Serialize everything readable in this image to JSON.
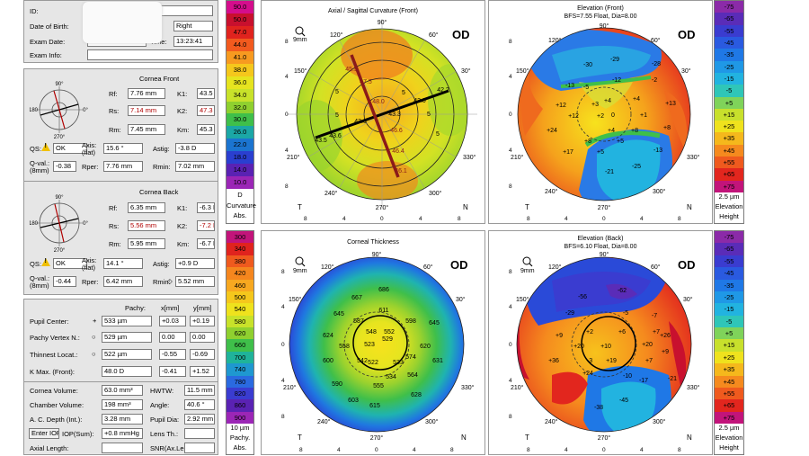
{
  "patient": {
    "id_label": "ID:",
    "dob_label": "Date of Birth:",
    "eye_value": "Right",
    "exam_date_label": "Exam Date:",
    "time_label": "Time:",
    "time_value": "13:23:41",
    "exam_info_label": "Exam Info:"
  },
  "cornea_front": {
    "title": "Cornea Front",
    "rf_label": "Rf:",
    "rf": "7.76 mm",
    "rs_label": "Rs:",
    "rs": "7.14 mm",
    "rm_label": "Rm:",
    "rm": "7.45 mm",
    "k1_label": "K1:",
    "k1": "43.5 D",
    "k2_label": "K2:",
    "k2": "47.3 D",
    "km_label": "Km:",
    "km": "45.3 D",
    "qs_label": "QS:",
    "qs": "OK",
    "axis_label": "Axis:",
    "axis_sub": "(flat)",
    "axis": "15.6 °",
    "astig_label": "Astig:",
    "astig": "-3.8 D",
    "qval_label": "Q-val.:",
    "qval_sub": "(8mm)",
    "qval": "-0.38",
    "rper_label": "Rper:",
    "rper": "7.76 mm",
    "rmin_label": "Rmin:",
    "rmin": "7.02 mm"
  },
  "cornea_back": {
    "title": "Cornea Back",
    "rf_label": "Rf:",
    "rf": "6.35 mm",
    "rs_label": "Rs:",
    "rs": "5.56 mm",
    "rm_label": "Rm:",
    "rm": "5.95 mm",
    "k1_label": "K1:",
    "k1": "-6.3 D",
    "k2_label": "K2:",
    "k2": "-7.2 D",
    "km_label": "Km:",
    "km": "-6.7 D",
    "qs_label": "QS:",
    "qs": "OK",
    "axis_label": "Axis:",
    "axis_sub": "(flat)",
    "axis": "14.1 °",
    "astig_label": "Astig:",
    "astig": "+0.9 D",
    "qval_label": "Q-val.:",
    "qval_sub": "(8mm)",
    "qval": "-0.44",
    "rper_label": "Rper:",
    "rper": "6.42 mm",
    "rmin_label": "Rmin:",
    "rmin": "5.52 mm"
  },
  "pachy": {
    "col_pachy": "Pachy:",
    "col_x": "x[mm]",
    "col_y": "y[mm]",
    "rows": [
      {
        "label": "Pupil Center:",
        "sym": "+",
        "val": "533 µm",
        "x": "+0.03",
        "y": "+0.19"
      },
      {
        "label": "Pachy Vertex N.:",
        "sym": "○",
        "val": "529 µm",
        "x": "0.00",
        "y": "0.00"
      },
      {
        "label": "Thinnest Locat.:",
        "sym": "○",
        "val": "522 µm",
        "x": "-0.55",
        "y": "-0.69"
      },
      {
        "label": "K Max. (Front):",
        "sym": "",
        "val": "48.0 D",
        "x": "-0.41",
        "y": "+1.52"
      }
    ]
  },
  "chamber": {
    "cornea_volume_label": "Cornea Volume:",
    "cornea_volume": "63.0 mm³",
    "hwtw_label": "HWTW:",
    "hwtw": "11.5 mm",
    "chamber_volume_label": "Chamber Volume:",
    "chamber_volume": "198 mm³",
    "angle_label": "Angle:",
    "angle": "40.6 °",
    "acd_label": "A. C. Depth (Int.):",
    "acd": "3.28 mm",
    "pupil_dia_label": "Pupil Dia:",
    "pupil_dia": "2.92 mm",
    "iop_button": "Enter IOP",
    "iop_label": "IOP(Sum):",
    "iop": "+0.8 mmHg",
    "lens_label": "Lens Th.:",
    "axial_label": "Axial Length:",
    "snr_label": "SNR(Ax.Len"
  },
  "maps": {
    "axial": {
      "title": "Axial / Sagittal Curvature (Front)",
      "subtitle": "",
      "eye": "OD",
      "zoom": "9mm",
      "left": "T",
      "right": "N"
    },
    "elev_front": {
      "title": "Elevation (Front)",
      "subtitle": "BFS=7.55 Float, Dia=8.00",
      "eye": "OD",
      "left": "T",
      "right": "N"
    },
    "thickness": {
      "title": "Corneal Thickness",
      "subtitle": "",
      "eye": "OD",
      "zoom": "9mm",
      "left": "T",
      "right": "N"
    },
    "elev_back": {
      "title": "Elevation (Back)",
      "subtitle": "BFS=6.10 Float, Dia=8.00",
      "eye": "OD",
      "zoom": "9mm",
      "left": "T",
      "right": "N"
    },
    "angles": {
      "a90": "90°",
      "a60": "60°",
      "a30": "30°",
      "a0": "0°",
      "a330": "330°",
      "a300": "300°",
      "a270": "270°",
      "a240": "240°",
      "a210": "210°",
      "a180": "180°",
      "a150": "150°",
      "a120": "120°"
    },
    "ticks_v": [
      "8",
      "4",
      "0",
      "4",
      "8"
    ],
    "ticks_h": [
      "8",
      "4",
      "0",
      "4",
      "8"
    ]
  },
  "scales": {
    "curvature": {
      "values": [
        "90.0",
        "50.0",
        "47.0",
        "44.0",
        "41.0",
        "38.0",
        "36.0",
        "34.0",
        "32.0",
        "30.0",
        "26.0",
        "22.0",
        "18.0",
        "14.0",
        "10.0",
        "D"
      ],
      "colors": [
        "#d40d8c",
        "#c8102e",
        "#e0231e",
        "#f25a1e",
        "#f79a20",
        "#f5c71c",
        "#e6e41f",
        "#c8e22a",
        "#8fd02f",
        "#3fbf4a",
        "#1ba7a6",
        "#1b74d0",
        "#2a3fd0",
        "#5a22b3",
        "#9b26b6",
        "#ffffff"
      ],
      "foot1": "Curvature",
      "foot2": "Abs."
    },
    "elev_front": {
      "values": [
        "-75",
        "-65",
        "-55",
        "-45",
        "-35",
        "-25",
        "-15",
        "-5",
        "+5",
        "+15",
        "+25",
        "+35",
        "+45",
        "+55",
        "+65",
        "+75"
      ],
      "colors": [
        "#8b2aa8",
        "#5a2cb8",
        "#3a3cd0",
        "#2a5ae0",
        "#1f78e6",
        "#1f98e6",
        "#22b3e0",
        "#2fc6b8",
        "#7fd35a",
        "#c8e02c",
        "#efe21d",
        "#f5b81c",
        "#f58a1e",
        "#ef5a1e",
        "#e2261e",
        "#c2147a"
      ],
      "foot0": "2.5 µm",
      "foot1": "Elevation",
      "foot2": "Height"
    },
    "thickness": {
      "values": [
        "300",
        "340",
        "380",
        "420",
        "460",
        "500",
        "540",
        "580",
        "620",
        "660",
        "700",
        "740",
        "780",
        "820",
        "860",
        "900"
      ],
      "colors": [
        "#c2147a",
        "#e0231e",
        "#ef5a1e",
        "#f5861e",
        "#f7a820",
        "#f5c71c",
        "#efe21d",
        "#c8e22a",
        "#8fd02f",
        "#3fbf4a",
        "#1fb39a",
        "#1f98d0",
        "#2a6ae0",
        "#3a3cd0",
        "#5a22b3",
        "#9b26b6"
      ],
      "foot0": "10 µm",
      "foot1": "Pachy.",
      "foot2": "Abs."
    },
    "elev_back": {
      "values": [
        "-75",
        "-65",
        "-55",
        "-45",
        "-35",
        "-25",
        "-15",
        "-5",
        "+5",
        "+15",
        "+25",
        "+35",
        "+45",
        "+55",
        "+65",
        "+75"
      ],
      "colors": [
        "#8b2aa8",
        "#5a2cb8",
        "#3a3cd0",
        "#2a5ae0",
        "#1f78e6",
        "#1f98e6",
        "#22b3e0",
        "#2fc6b8",
        "#7fd35a",
        "#c8e02c",
        "#efe21d",
        "#f5b81c",
        "#f58a1e",
        "#ef5a1e",
        "#e2261e",
        "#c2147a"
      ],
      "foot0": "2.5 µm",
      "foot1": "Elevation",
      "foot2": "Height"
    }
  },
  "map_values": {
    "axial": [
      "45.5",
      "47.5",
      "48.0",
      "43.0",
      "42.2",
      "43.6",
      "43.3",
      "43.6",
      "46.6",
      "46.4",
      "46.1",
      "43.5",
      "5",
      "5",
      "5",
      "5",
      "5"
    ],
    "elev_front": [
      "-30",
      "-29",
      "-28",
      "-13",
      "-12",
      "-5",
      "-2",
      "+12",
      "+3",
      "+4",
      "+4",
      "+13",
      "+12",
      "+2",
      "0",
      "+1",
      "+8",
      "+5",
      "+24",
      "+4",
      "+8",
      "+8",
      "+17",
      "+5",
      "-13",
      "-21",
      "-25"
    ],
    "thickness": [
      "686",
      "667",
      "611",
      "645",
      "587",
      "598",
      "645",
      "548",
      "552",
      "624",
      "558",
      "600",
      "523",
      "529",
      "542",
      "620",
      "522",
      "533",
      "534",
      "574",
      "564",
      "631",
      "590",
      "555",
      "603",
      "615",
      "628"
    ],
    "elev_back": [
      "-62",
      "-56",
      "-29",
      "-5",
      "-7",
      "+2",
      "+6",
      "+7",
      "+9",
      "+20",
      "-3",
      "+10",
      "+20",
      "+26",
      "+36",
      "+19",
      "+7",
      "+9",
      "-17",
      "-10",
      "+24",
      "-45",
      "-38",
      "-21"
    ]
  }
}
